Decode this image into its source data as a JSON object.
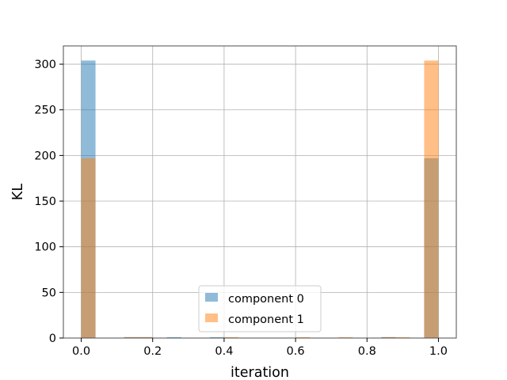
{
  "chart_data": {
    "type": "bar",
    "title": "",
    "xlabel": "iteration",
    "ylabel": "KL",
    "xlim": [
      -0.05,
      1.05
    ],
    "ylim": [
      0,
      320
    ],
    "xticks": [
      0.0,
      0.2,
      0.4,
      0.6,
      0.8,
      1.0
    ],
    "xtick_labels": [
      "0.0",
      "0.2",
      "0.4",
      "0.6",
      "0.8",
      "1.0"
    ],
    "yticks": [
      0,
      50,
      100,
      150,
      200,
      250,
      300
    ],
    "ytick_labels": [
      "0",
      "50",
      "100",
      "150",
      "200",
      "250",
      "300"
    ],
    "grid": true,
    "legend_position": "bottom-center",
    "bin_edges": [
      0.0,
      0.04,
      0.08,
      0.12,
      0.16,
      0.2,
      0.24,
      0.28,
      0.32,
      0.36,
      0.4,
      0.44,
      0.48,
      0.52,
      0.56,
      0.6,
      0.64,
      0.68,
      0.72,
      0.76,
      0.8,
      0.84,
      0.88,
      0.92,
      0.96,
      1.0
    ],
    "series": [
      {
        "name": "component 0",
        "color": "#1f77b4",
        "alpha": 0.5,
        "values": [
          304,
          0,
          0,
          1,
          1,
          0,
          1,
          0,
          0,
          1,
          0,
          0,
          0,
          0,
          0,
          0,
          0,
          0,
          0,
          0,
          0,
          1,
          0,
          0,
          197
        ]
      },
      {
        "name": "component 1",
        "color": "#ff7f0e",
        "alpha": 0.5,
        "values": [
          197,
          0,
          0,
          1,
          1,
          0,
          0,
          0,
          0,
          0,
          1,
          0,
          0,
          0,
          0,
          1,
          0,
          0,
          1,
          0,
          0,
          1,
          1,
          0,
          304
        ]
      }
    ]
  }
}
